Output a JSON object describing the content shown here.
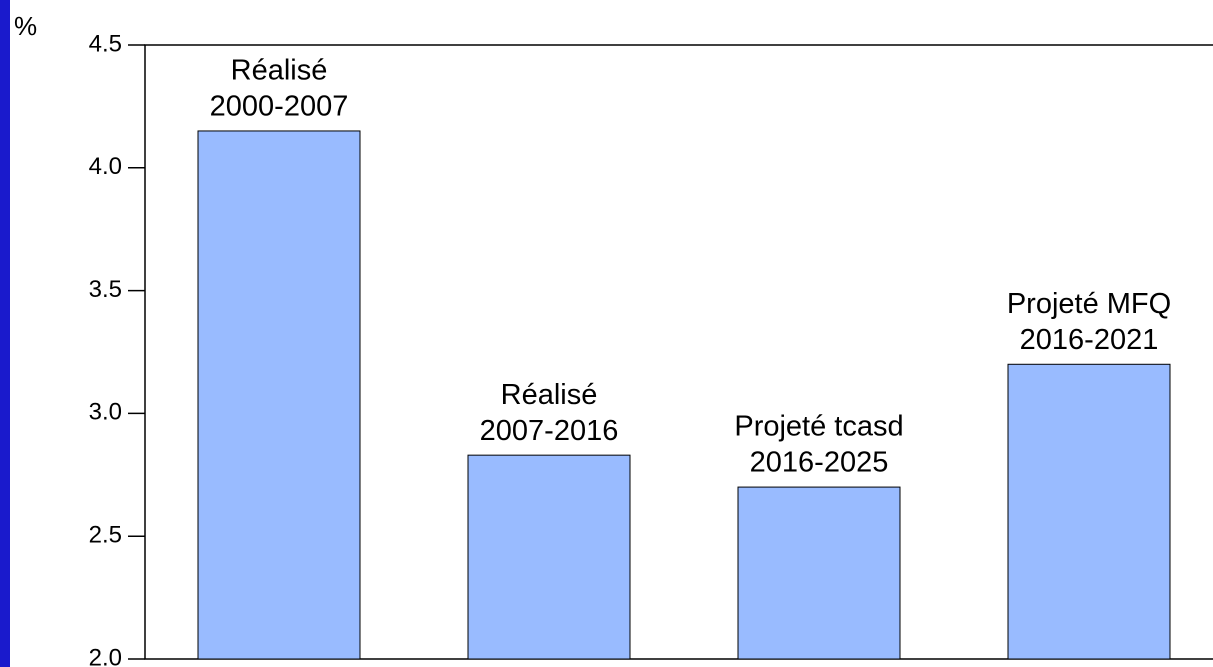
{
  "chart_data": {
    "type": "bar",
    "y_label": "%",
    "categories": [
      [
        "Réalisé",
        "2000-2007"
      ],
      [
        "Réalisé",
        "2007-2016"
      ],
      [
        "Projeté tcasd",
        "2016-2025"
      ],
      [
        "Projeté MFQ",
        "2016-2021"
      ]
    ],
    "values": [
      4.15,
      2.83,
      2.7,
      3.2
    ],
    "color": "#99bbff",
    "ylim": [
      2.0,
      4.5
    ],
    "yticks": [
      {
        "value": 2.0,
        "label": "2.0"
      },
      {
        "value": 2.5,
        "label": "2.5"
      },
      {
        "value": 3.0,
        "label": "3.0"
      },
      {
        "value": 3.5,
        "label": "3.5"
      },
      {
        "value": 4.0,
        "label": "4.0"
      },
      {
        "value": 4.5,
        "label": "4.5"
      }
    ]
  }
}
